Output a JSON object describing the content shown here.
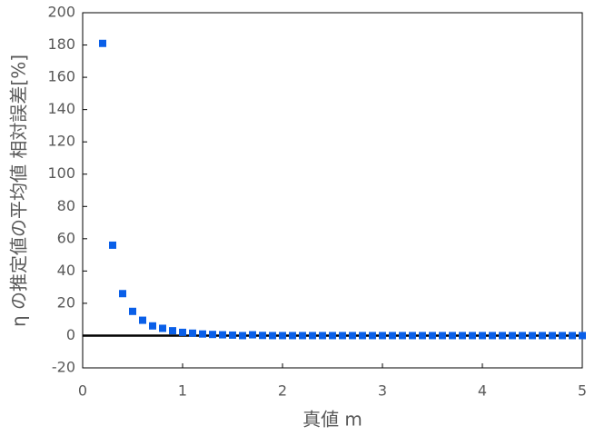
{
  "chart_data": {
    "type": "scatter",
    "xlabel": "真値 m",
    "ylabel": "η の推定値の平均値 相対誤差[%]",
    "color": "#0a5fe8",
    "x": [
      0.2,
      0.3,
      0.4,
      0.5,
      0.6,
      0.7,
      0.8,
      0.9,
      1.0,
      1.1,
      1.2,
      1.3,
      1.4,
      1.5,
      1.6,
      1.7,
      1.8,
      1.9,
      2.0,
      2.1,
      2.2,
      2.3,
      2.4,
      2.5,
      2.6,
      2.7,
      2.8,
      2.9,
      3.0,
      3.1,
      3.2,
      3.3,
      3.4,
      3.5,
      3.6,
      3.7,
      3.8,
      3.9,
      4.0,
      4.1,
      4.2,
      4.3,
      4.4,
      4.5,
      4.6,
      4.7,
      4.8,
      4.9,
      5.0
    ],
    "values": [
      181,
      56,
      26,
      15,
      9.5,
      6,
      4.5,
      3,
      2,
      1.5,
      1,
      0.7,
      0.5,
      0.3,
      0,
      0.5,
      0.1,
      0,
      0,
      0,
      0,
      0,
      0,
      0,
      0,
      0,
      0,
      0,
      0,
      0,
      0,
      0,
      0,
      0,
      0,
      0,
      0,
      0,
      0,
      0,
      0,
      0,
      0,
      0,
      0,
      0,
      0,
      0,
      0
    ],
    "xlim": [
      0,
      5
    ],
    "xticks": [
      0,
      1,
      2,
      3,
      4,
      5
    ],
    "ylim": [
      -20,
      200
    ],
    "yticks": [
      -20,
      0,
      20,
      40,
      60,
      80,
      100,
      120,
      140,
      160,
      180,
      200
    ]
  }
}
